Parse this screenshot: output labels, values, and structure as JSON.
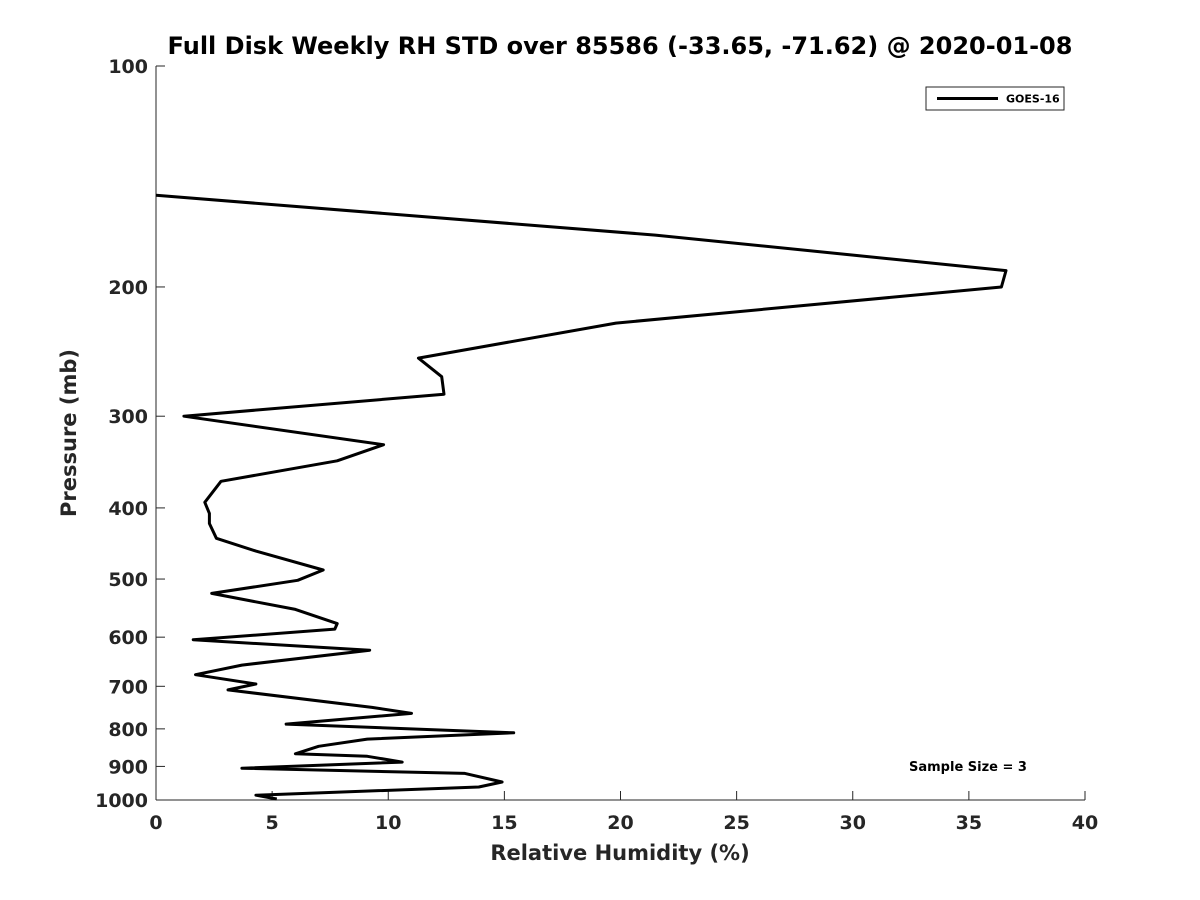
{
  "chart_data": {
    "type": "line",
    "title": "Full Disk Weekly RH STD over 85586 (-33.65, -71.62) @ 2020-01-08",
    "xlabel": "Relative Humidity (%)",
    "ylabel": "Pressure (mb)",
    "xlim": [
      0,
      40
    ],
    "ylim": [
      100,
      1000
    ],
    "y_scale": "log",
    "y_reversed": true,
    "x_ticks": [
      0,
      5,
      10,
      15,
      20,
      25,
      30,
      35,
      40
    ],
    "x_tick_labels": [
      "0",
      "5",
      "10",
      "15",
      "20",
      "25",
      "30",
      "35",
      "40"
    ],
    "y_ticks": [
      100,
      200,
      300,
      400,
      500,
      600,
      700,
      800,
      900,
      1000
    ],
    "y_tick_labels": [
      "100",
      "200",
      "300",
      "400",
      "500",
      "600",
      "700",
      "800",
      "900",
      "1000"
    ],
    "grid": false,
    "legend_position": "top-right",
    "series": [
      {
        "name": "GOES-16",
        "color": "#000000",
        "x": [
          0.0,
          21.5,
          36.6,
          36.4,
          19.8,
          11.3,
          12.3,
          12.4,
          1.2,
          9.8,
          7.8,
          2.8,
          2.1,
          2.3,
          2.3,
          2.6,
          4.3,
          7.2,
          6.1,
          2.4,
          6.0,
          7.8,
          7.7,
          1.6,
          9.2,
          3.7,
          1.7,
          4.3,
          3.1,
          9.3,
          11.0,
          5.6,
          15.4,
          9.1,
          7.0,
          6.0,
          9.1,
          10.6,
          3.7,
          13.3,
          14.9,
          13.9,
          4.3,
          5.2
        ],
        "y": [
          150,
          170,
          190,
          200,
          224,
          250,
          265,
          280,
          300,
          328,
          345,
          368,
          393,
          407,
          420,
          440,
          458,
          486,
          502,
          523,
          550,
          575,
          585,
          605,
          625,
          655,
          675,
          695,
          708,
          748,
          762,
          788,
          810,
          826,
          845,
          865,
          872,
          888,
          905,
          920,
          945,
          960,
          985,
          997
        ]
      }
    ],
    "annotations": [
      {
        "text": "Sample Size = 3",
        "position": "bottom-right"
      }
    ]
  }
}
